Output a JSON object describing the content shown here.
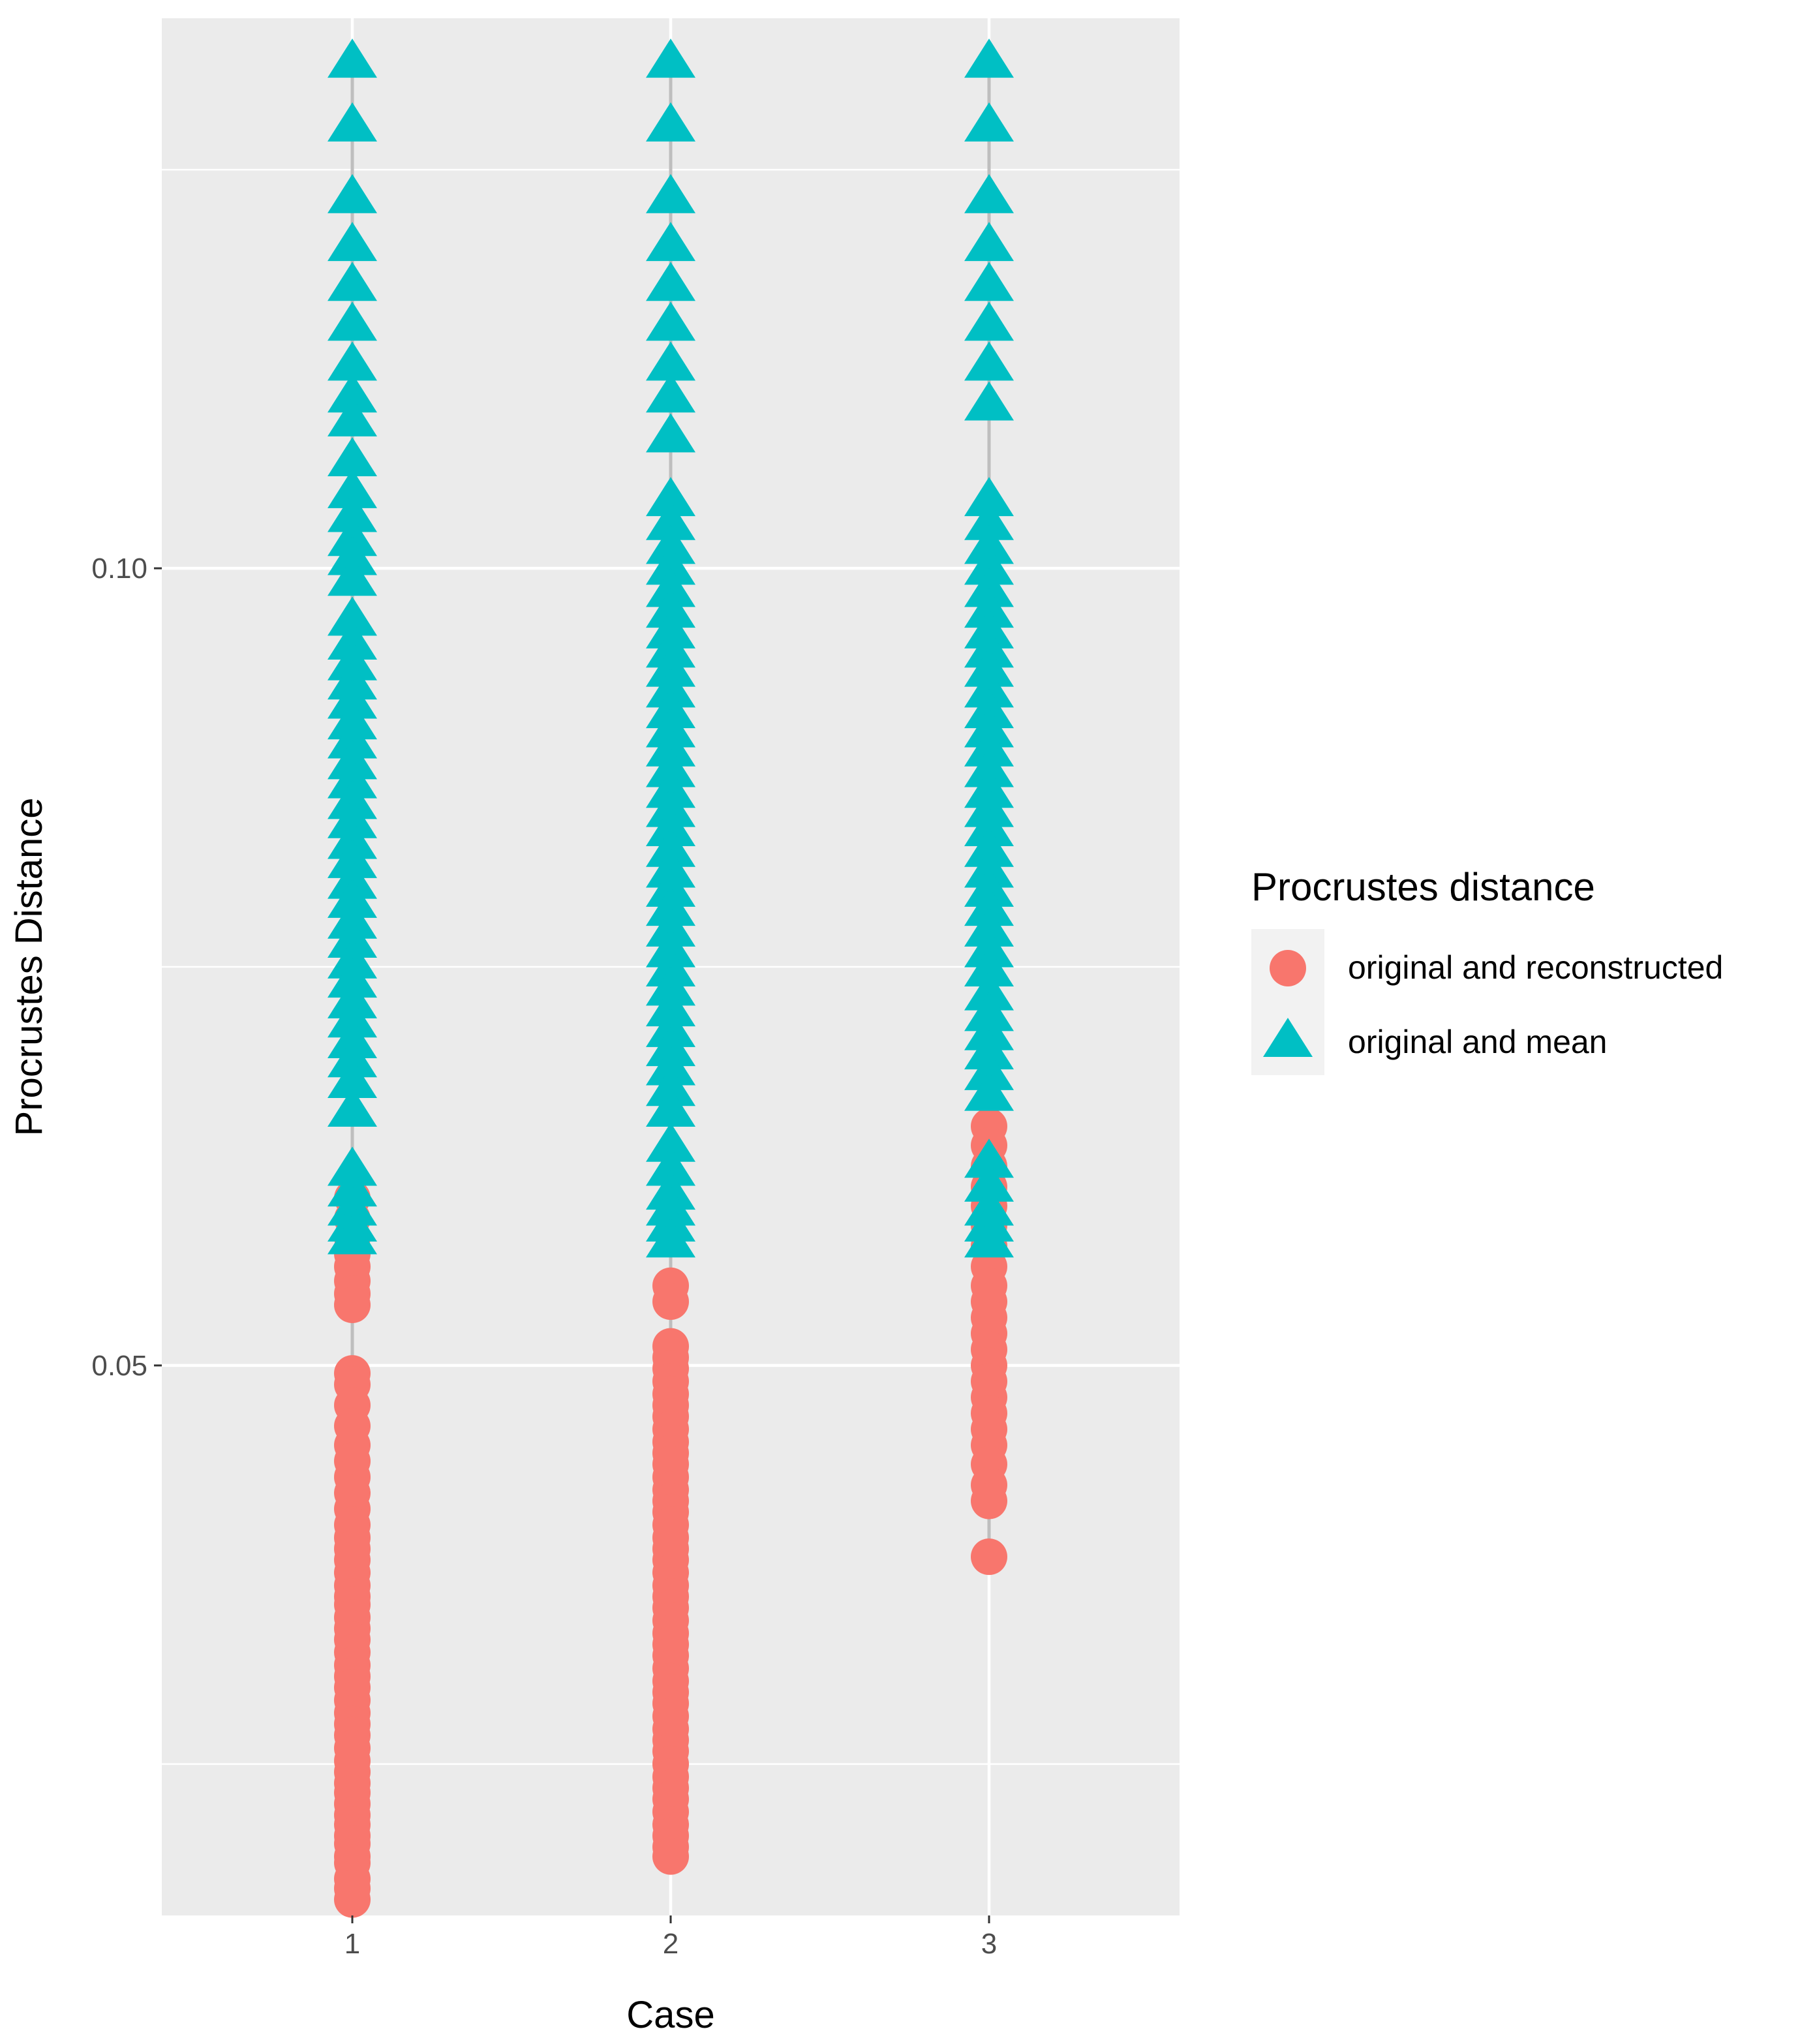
{
  "chart_data": {
    "type": "scatter",
    "title": "",
    "xlabel": "Case",
    "ylabel": "Procrustes Distance",
    "categories": [
      "1",
      "2",
      "3"
    ],
    "ylim": [
      0.0155,
      0.1345
    ],
    "yticks": [
      0.05,
      0.1
    ],
    "ytick_labels": [
      "0.05",
      "0.10"
    ],
    "yminor": [
      0.025,
      0.075,
      0.125
    ],
    "grid": true,
    "legend": {
      "title": "Procrustes distance",
      "position": "right",
      "entries": [
        {
          "label": "original and reconstructed",
          "shape": "circle",
          "color": "#F8766D"
        },
        {
          "label": "original and mean",
          "shape": "triangle",
          "color": "#00BFC4"
        }
      ]
    },
    "colors": {
      "panel": "#EBEBEB",
      "grid": "#FFFFFF",
      "range_line": "#BEBEBE",
      "reconstructed": "#F8766D",
      "mean": "#00BFC4"
    },
    "series": [
      {
        "name": "original and reconstructed",
        "shape": "circle",
        "points": [
          {
            "case": "1",
            "values": [
              0.0605,
              0.0592,
              0.058,
              0.057,
              0.0562,
              0.0553,
              0.0545,
              0.0538,
              0.0495,
              0.0488,
              0.0475,
              0.0462,
              0.045,
              0.044,
              0.043,
              0.042,
              0.041,
              0.04,
              0.0392,
              0.0385,
              0.0378,
              0.037,
              0.0362,
              0.0355,
              0.035,
              0.0342,
              0.0335,
              0.0328,
              0.032,
              0.0312,
              0.0305,
              0.0298,
              0.029,
              0.0282,
              0.0275,
              0.0268,
              0.026,
              0.0252,
              0.0245,
              0.0238,
              0.0232,
              0.0225,
              0.0218,
              0.0212,
              0.0205,
              0.02,
              0.0192,
              0.0188,
              0.0178,
              0.0172,
              0.0165
            ]
          },
          {
            "case": "2",
            "values": [
              0.055,
              0.054,
              0.0512,
              0.0505,
              0.0498,
              0.049,
              0.0482,
              0.0475,
              0.0468,
              0.046,
              0.0452,
              0.0445,
              0.0438,
              0.043,
              0.0422,
              0.0415,
              0.0408,
              0.04,
              0.0392,
              0.0385,
              0.0378,
              0.037,
              0.0362,
              0.0355,
              0.0348,
              0.034,
              0.0332,
              0.0325,
              0.0318,
              0.031,
              0.0302,
              0.0295,
              0.0288,
              0.028,
              0.0272,
              0.0265,
              0.0258,
              0.025,
              0.0242,
              0.0235,
              0.0228,
              0.022,
              0.0212,
              0.0205,
              0.0198,
              0.0192
            ]
          },
          {
            "case": "3",
            "values": [
              0.065,
              0.0638,
              0.0625,
              0.0612,
              0.06,
              0.0588,
              0.0575,
              0.0562,
              0.055,
              0.054,
              0.053,
              0.052,
              0.051,
              0.05,
              0.049,
              0.048,
              0.047,
              0.046,
              0.045,
              0.0438,
              0.0425,
              0.0415,
              0.038
            ]
          }
        ]
      },
      {
        "name": "original and mean",
        "shape": "triangle",
        "points": [
          {
            "case": "1",
            "values": [
              0.132,
              0.128,
              0.1235,
              0.1205,
              0.118,
              0.1155,
              0.113,
              0.111,
              0.1095,
              0.107,
              0.105,
              0.1035,
              0.102,
              0.1008,
              0.0995,
              0.097,
              0.0955,
              0.0942,
              0.093,
              0.0918,
              0.0905,
              0.0893,
              0.088,
              0.0868,
              0.0855,
              0.0843,
              0.083,
              0.0818,
              0.0805,
              0.0793,
              0.078,
              0.0768,
              0.0755,
              0.0743,
              0.073,
              0.0718,
              0.0705,
              0.0693,
              0.068,
              0.0662,
              0.0625,
              0.0612,
              0.06,
              0.059,
              0.0582
            ]
          },
          {
            "case": "2",
            "values": [
              0.132,
              0.128,
              0.1235,
              0.1205,
              0.118,
              0.1155,
              0.113,
              0.111,
              0.1085,
              0.1045,
              0.103,
              0.1015,
              0.1002,
              0.0988,
              0.0975,
              0.0962,
              0.095,
              0.0938,
              0.0925,
              0.0912,
              0.09,
              0.0888,
              0.0875,
              0.0862,
              0.085,
              0.0838,
              0.0825,
              0.0812,
              0.08,
              0.0788,
              0.0775,
              0.0762,
              0.075,
              0.0738,
              0.0725,
              0.0712,
              0.07,
              0.0688,
              0.0675,
              0.0662,
              0.064,
              0.0625,
              0.061,
              0.06,
              0.059,
              0.058
            ]
          },
          {
            "case": "3",
            "values": [
              0.132,
              0.128,
              0.1235,
              0.1205,
              0.118,
              0.1155,
              0.113,
              0.1105,
              0.1045,
              0.103,
              0.1015,
              0.1002,
              0.0988,
              0.0975,
              0.0962,
              0.095,
              0.0938,
              0.0925,
              0.0912,
              0.09,
              0.0888,
              0.0875,
              0.0862,
              0.085,
              0.0838,
              0.0825,
              0.0812,
              0.08,
              0.0788,
              0.0775,
              0.0762,
              0.075,
              0.0735,
              0.0722,
              0.071,
              0.0698,
              0.0685,
              0.0672,
              0.063,
              0.0615,
              0.06,
              0.059,
              0.058
            ]
          }
        ]
      }
    ]
  }
}
